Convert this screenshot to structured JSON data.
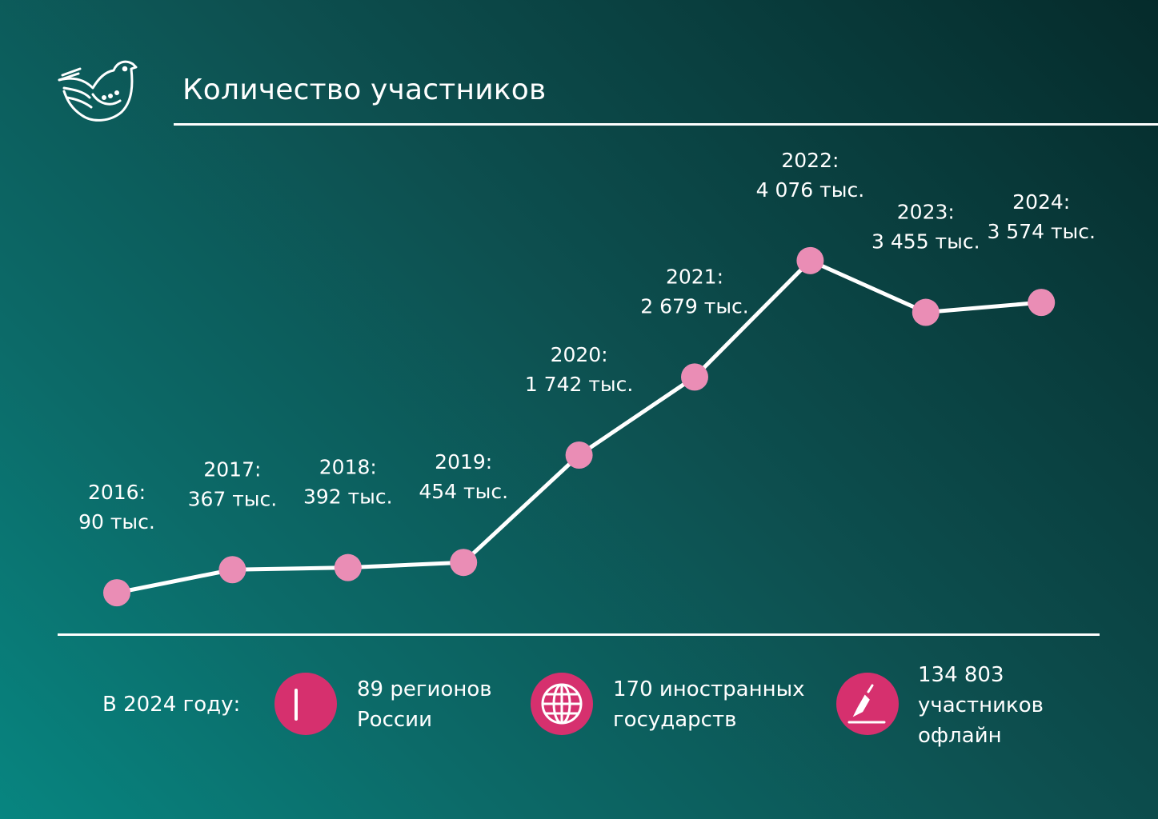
{
  "title": "Количество участников",
  "logo_icon": "dove-icon",
  "chart_data": {
    "type": "line",
    "title": "Количество участников",
    "unit": "тыс.",
    "x": [
      "2016",
      "2017",
      "2018",
      "2019",
      "2020",
      "2021",
      "2022",
      "2023",
      "2024"
    ],
    "values": [
      90,
      367,
      392,
      454,
      1742,
      2679,
      4076,
      3455,
      3574
    ],
    "year_labels": [
      "2016:",
      "2017:",
      "2018:",
      "2019:",
      "2020:",
      "2021:",
      "2022:",
      "2023:",
      "2024:"
    ],
    "value_labels": [
      "90 тыс.",
      "367 тыс.",
      "392 тыс.",
      "454 тыс.",
      "1 742 тыс.",
      "2 679 тыс.",
      "4 076 тыс.",
      "3 455 тыс.",
      "3 574 тыс."
    ],
    "line_color": "#ffffff",
    "marker_color": "#ea8db5",
    "grid": false,
    "legend": "none"
  },
  "stats": {
    "label": "В 2024 году:",
    "icon_color": "#d6306e",
    "items": [
      {
        "icon": "region-icon",
        "line1": "89 регионов",
        "line2": "России"
      },
      {
        "icon": "globe-icon",
        "line1": "170 иностранных",
        "line2": "государств"
      },
      {
        "icon": "pen-icon",
        "line1": "134 803",
        "line2": "участников",
        "line3": "офлайн"
      }
    ]
  }
}
